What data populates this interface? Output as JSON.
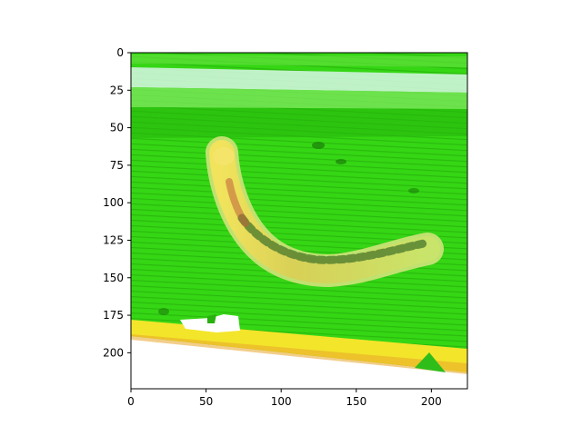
{
  "chart_data": {
    "type": "image",
    "image_size": [
      224,
      224
    ],
    "xlim": [
      0,
      224
    ],
    "ylim": [
      224,
      0
    ],
    "x_ticks": [
      0,
      50,
      100,
      150,
      200
    ],
    "x_tick_labels": [
      "0",
      "50",
      "100",
      "150",
      "200"
    ],
    "y_ticks": [
      0,
      25,
      50,
      75,
      100,
      125,
      150,
      175,
      200
    ],
    "y_tick_labels": [
      "0",
      "25",
      "50",
      "75",
      "100",
      "125",
      "150",
      "175",
      "200"
    ],
    "title": "",
    "xlabel": "",
    "ylabel": "",
    "grid": false,
    "image_subject": "green caterpillar on a green leaf",
    "colors": {
      "leaf_green": "#35d614",
      "leaf_dark": "#1fa80a",
      "highlight_band": "#d8f7e6",
      "caterpillar_yellow": "#e3e05a",
      "caterpillar_dark": "#4f7d2e",
      "leaf_edge_yellow": "#f3e52a",
      "background_white": "#ffffff"
    }
  }
}
